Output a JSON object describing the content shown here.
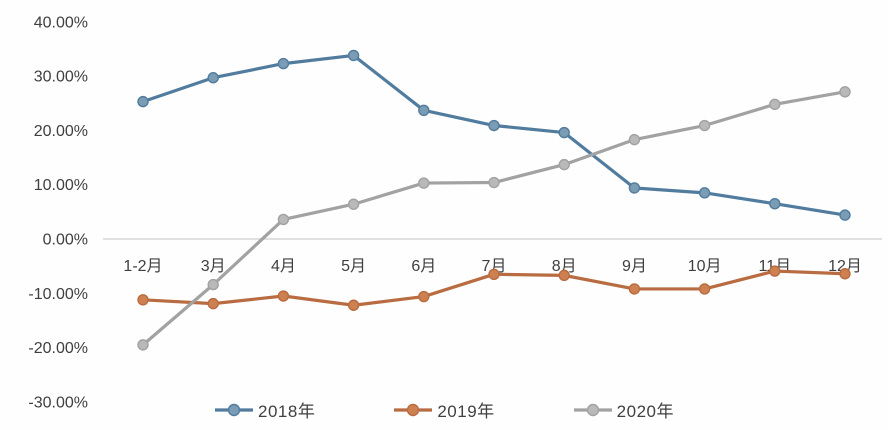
{
  "chart_data": {
    "type": "line",
    "title": "",
    "xlabel": "",
    "ylabel": "",
    "categories": [
      "1-2月",
      "3月",
      "4月",
      "5月",
      "6月",
      "7月",
      "8月",
      "9月",
      "10月",
      "11月",
      "12月"
    ],
    "series": [
      {
        "name": "2018年",
        "color": "#517c9e",
        "marker_fill": "#7b9cb5",
        "values": [
          25.3,
          29.7,
          32.3,
          33.8,
          23.7,
          20.9,
          19.6,
          9.4,
          8.5,
          6.5,
          4.4
        ]
      },
      {
        "name": "2019年",
        "color": "#b96c41",
        "marker_fill": "#cd8050",
        "values": [
          -11.2,
          -11.9,
          -10.5,
          -12.2,
          -10.6,
          -6.5,
          -6.7,
          -9.2,
          -9.2,
          -5.9,
          -6.4
        ]
      },
      {
        "name": "2020年",
        "color": "#a2a2a2",
        "marker_fill": "#b9b9b9",
        "values": [
          -19.5,
          -8.4,
          3.6,
          6.4,
          10.3,
          10.4,
          13.7,
          18.3,
          20.9,
          24.8,
          27.1
        ]
      }
    ],
    "y_ticks": [
      {
        "label": "40.00%",
        "value": 40
      },
      {
        "label": "30.00%",
        "value": 30
      },
      {
        "label": "20.00%",
        "value": 20
      },
      {
        "label": "10.00%",
        "value": 10
      },
      {
        "label": "0.00%",
        "value": 0
      },
      {
        "label": "-10.00%",
        "value": -10
      },
      {
        "label": "-20.00%",
        "value": -20
      },
      {
        "label": "-30.00%",
        "value": -30
      }
    ],
    "ylim": [
      -30,
      40
    ],
    "grid": "zero-line-only",
    "zero_line_color": "#d6d6d6",
    "axis_text_color": "#3f3f3f",
    "legend_position": "bottom"
  }
}
